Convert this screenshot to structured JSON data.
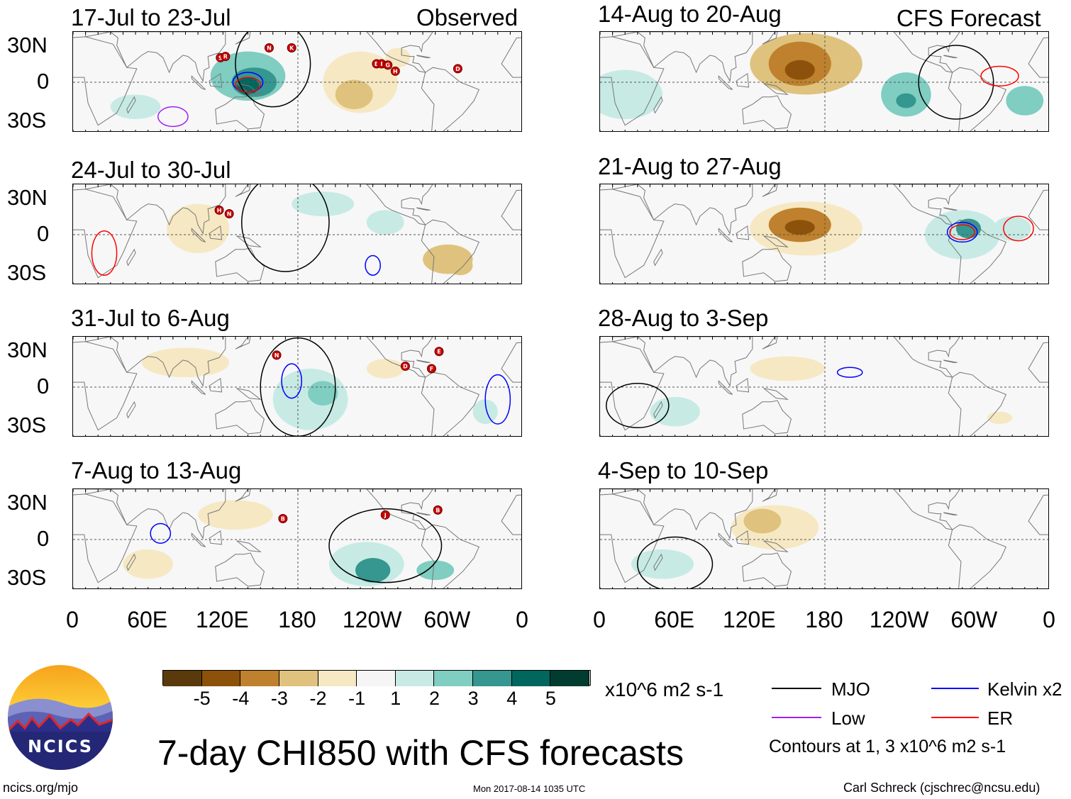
{
  "headers": {
    "observed": "Observed",
    "forecast": "CFS Forecast"
  },
  "panels_left": [
    {
      "title": "17-Jul to 23-Jul",
      "storms": [
        "S",
        "R",
        "N",
        "K",
        "B",
        "I",
        "G",
        "H",
        "D"
      ]
    },
    {
      "title": "24-Jul to 30-Jul",
      "storms": [
        "H",
        "N"
      ]
    },
    {
      "title": "31-Jul to 6-Aug",
      "storms": [
        "N",
        "E",
        "D",
        "F"
      ]
    },
    {
      "title": "7-Aug to 13-Aug",
      "storms": [
        "B",
        "J",
        "B"
      ]
    }
  ],
  "panels_right": [
    {
      "title": "14-Aug to 20-Aug"
    },
    {
      "title": "21-Aug to 27-Aug"
    },
    {
      "title": "28-Aug to 3-Sep"
    },
    {
      "title": "4-Sep to 10-Sep"
    }
  ],
  "lat_labels": [
    "30N",
    "0",
    "30S"
  ],
  "lon_labels": [
    "0",
    "60E",
    "120E",
    "180",
    "120W",
    "60W",
    "0"
  ],
  "colorbar": {
    "colors": [
      "#5a3a0c",
      "#8c510a",
      "#bf812d",
      "#dfc27d",
      "#f6e8c3",
      "#f5f5f5",
      "#c7eae5",
      "#80cdc1",
      "#35978f",
      "#01665e",
      "#003c30"
    ],
    "labels": [
      "-5",
      "-4",
      "-3",
      "-2",
      "-1",
      "1",
      "2",
      "3",
      "4",
      "5"
    ],
    "units": "x10^6 m2 s-1"
  },
  "legend": {
    "items": [
      {
        "label": "MJO",
        "color": "#000000"
      },
      {
        "label": "Kelvin x2",
        "color": "#0000ff"
      },
      {
        "label": "Low",
        "color": "#a020f0"
      },
      {
        "label": "ER",
        "color": "#ff0000"
      }
    ],
    "contours_note": "Contours at 1, 3 x10^6 m2 s-1"
  },
  "title": "7-day CHI850 with CFS forecasts",
  "logo": {
    "text": "NCICS"
  },
  "footer": {
    "url": "ncics.org/mjo",
    "timestamp": "Mon 2017-08-14 1035 UTC",
    "author": "Carl Schreck (cjschrec@ncsu.edu)"
  }
}
